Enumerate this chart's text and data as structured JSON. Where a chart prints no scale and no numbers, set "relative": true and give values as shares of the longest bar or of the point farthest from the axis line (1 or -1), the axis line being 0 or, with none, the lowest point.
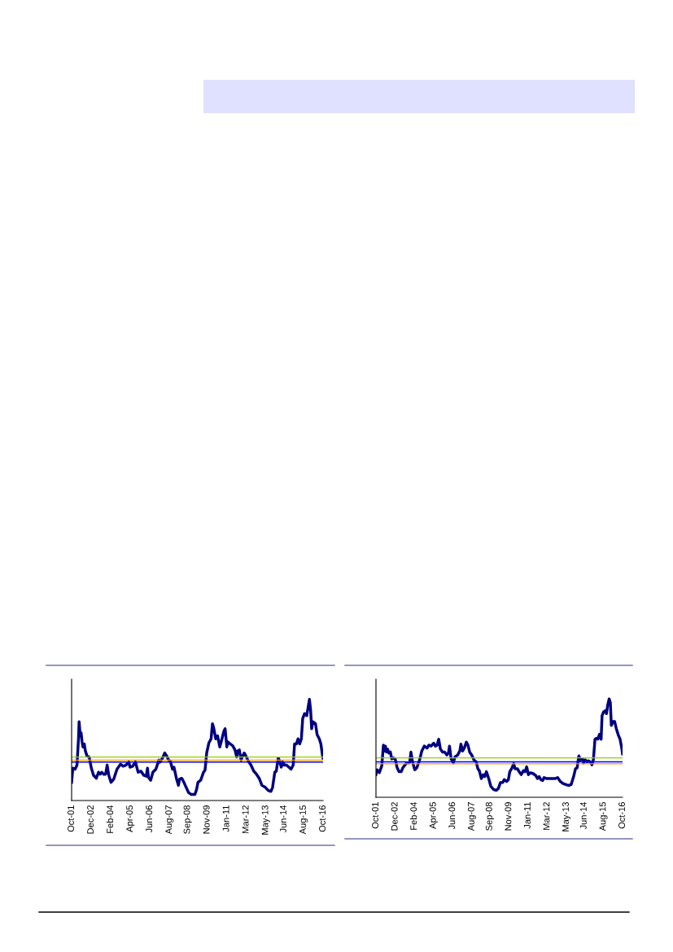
{
  "chart_data": [
    {
      "type": "line",
      "relative": true,
      "xlim": [
        "2001-10",
        "2016-10"
      ],
      "xticks": [
        {
          "value": "2001-10",
          "label": "Oct-01"
        },
        {
          "value": "2002-12",
          "label": "Dec-02"
        },
        {
          "value": "2004-02",
          "label": "Feb-04"
        },
        {
          "value": "2005-04",
          "label": "Apr-05"
        },
        {
          "value": "2006-06",
          "label": "Jun-06"
        },
        {
          "value": "2007-08",
          "label": "Aug-07"
        },
        {
          "value": "2008-09",
          "label": "Sep-08"
        },
        {
          "value": "2009-11",
          "label": "Nov-09"
        },
        {
          "value": "2011-01",
          "label": "Jan-11"
        },
        {
          "value": "2012-03",
          "label": "Mar-12"
        },
        {
          "value": "2013-05",
          "label": "May-13"
        },
        {
          "value": "2014-06",
          "label": "Jun-14"
        },
        {
          "value": "2015-08",
          "label": "Aug-15"
        },
        {
          "value": "2016-10",
          "label": "Oct-16"
        }
      ],
      "x": [
        "2001-10-01",
        "2001-10-28",
        "2001-12-16",
        "2002-01-26",
        "2002-02-28",
        "2002-03-13",
        "2002-04-08",
        "2002-04-26",
        "2002-05-17",
        "2002-06-05",
        "2002-07-04",
        "2002-07-28",
        "2002-09-02",
        "2002-10-19",
        "2002-12-05",
        "2003-01-22",
        "2003-03-23",
        "2003-05-10",
        "2003-06-13",
        "2003-07-19",
        "2003-08-25",
        "2003-10-11",
        "2003-11-14",
        "2003-12-20",
        "2004-02-07",
        "2004-04-04",
        "2004-06-16",
        "2004-09-02",
        "2004-10-28",
        "2004-12-27",
        "2005-02-28",
        "2005-03-27",
        "2005-05-25",
        "2005-07-22",
        "2005-09-20",
        "2005-11-21",
        "2006-01-19",
        "2006-03-16",
        "2006-04-11",
        "2006-05-03",
        "2006-06-20",
        "2006-08-07",
        "2006-10-11",
        "2006-12-16",
        "2007-01-08",
        "2007-03-05",
        "2007-04-22",
        "2007-06-05",
        "2007-07-15",
        "2007-08-21",
        "2007-10-08",
        "2007-11-10",
        "2008-01-01",
        "2008-02-14",
        "2008-03-09",
        "2008-04-26",
        "2008-06-13",
        "2008-07-22",
        "2008-09-20",
        "2008-11-21",
        "2009-02-07",
        "2009-03-16",
        "2009-04-15",
        "2009-06-13",
        "2009-08-14",
        "2009-09-16",
        "2009-10-22",
        "2009-12-09",
        "2010-01-26",
        "2010-02-25",
        "2010-03-23",
        "2010-05-07",
        "2010-06-16",
        "2010-08-03",
        "2010-09-20",
        "2010-10-28",
        "2010-11-28",
        "2011-01-04",
        "2011-01-28",
        "2011-03-16",
        "2011-05-14",
        "2011-07-01",
        "2011-08-07",
        "2011-08-28",
        "2011-10-04",
        "2011-11-10",
        "2011-12-13",
        "2012-01-19",
        "2012-02-25",
        "2012-04-15",
        "2012-06-13",
        "2012-08-14",
        "2012-10-11",
        "2012-12-09",
        "2013-02-07",
        "2013-04-22",
        "2013-06-23",
        "2013-08-21",
        "2013-09-27",
        "2013-11-14",
        "2013-12-16",
        "2014-01-28",
        "2014-02-28",
        "2014-04-04",
        "2014-05-07",
        "2014-06-13",
        "2014-07-28",
        "2014-09-16",
        "2014-11-03",
        "2014-12-20",
        "2015-01-19",
        "2015-02-28",
        "2015-04-04",
        "2015-05-10",
        "2015-06-16",
        "2015-07-15",
        "2015-08-25",
        "2015-10-11",
        "2015-11-10",
        "2015-12-09",
        "2016-01-04",
        "2016-01-26",
        "2016-02-21",
        "2016-04-19",
        "2016-05-25",
        "2016-07-11",
        "2016-08-14",
        "2016-09-20",
        "2016-10-01"
      ],
      "series": [
        {
          "color": "#000080",
          "values": [
            0.18,
            0.32,
            0.31,
            0.35,
            0.61,
            0.78,
            0.64,
            0.67,
            0.58,
            0.53,
            0.56,
            0.49,
            0.44,
            0.43,
            0.32,
            0.25,
            0.22,
            0.28,
            0.26,
            0.28,
            0.26,
            0.26,
            0.35,
            0.25,
            0.18,
            0.21,
            0.31,
            0.36,
            0.34,
            0.35,
            0.38,
            0.33,
            0.34,
            0.38,
            0.28,
            0.29,
            0.25,
            0.24,
            0.32,
            0.23,
            0.2,
            0.28,
            0.31,
            0.4,
            0.38,
            0.42,
            0.47,
            0.44,
            0.4,
            0.39,
            0.31,
            0.33,
            0.22,
            0.15,
            0.21,
            0.22,
            0.18,
            0.14,
            0.08,
            0.06,
            0.06,
            0.11,
            0.18,
            0.2,
            0.28,
            0.3,
            0.47,
            0.57,
            0.61,
            0.76,
            0.72,
            0.61,
            0.64,
            0.53,
            0.61,
            0.68,
            0.71,
            0.53,
            0.58,
            0.56,
            0.54,
            0.5,
            0.43,
            0.49,
            0.5,
            0.4,
            0.44,
            0.47,
            0.44,
            0.39,
            0.35,
            0.29,
            0.26,
            0.22,
            0.15,
            0.13,
            0.1,
            0.09,
            0.13,
            0.28,
            0.29,
            0.42,
            0.39,
            0.33,
            0.38,
            0.35,
            0.35,
            0.33,
            0.31,
            0.35,
            0.56,
            0.56,
            0.61,
            0.56,
            0.61,
            0.81,
            0.86,
            0.84,
            0.92,
            1.0,
            0.89,
            0.71,
            0.78,
            0.76,
            0.65,
            0.61,
            0.56,
            0.44,
            0.42
          ]
        }
      ],
      "ref_lines": [
        {
          "axis": "y",
          "value": 0.43,
          "color": "#99cc00"
        },
        {
          "axis": "y",
          "value": 0.4,
          "color": "#ff9900"
        },
        {
          "axis": "y",
          "value": 0.38,
          "color": "#0000ff"
        }
      ],
      "grid": false,
      "legend": false
    },
    {
      "type": "line",
      "relative": true,
      "xlim": [
        "2001-10",
        "2016-10"
      ],
      "xticks": [
        {
          "value": "2001-10",
          "label": "Oct-01"
        },
        {
          "value": "2002-12",
          "label": "Dec-02"
        },
        {
          "value": "2004-02",
          "label": "Feb-04"
        },
        {
          "value": "2005-04",
          "label": "Apr-05"
        },
        {
          "value": "2006-06",
          "label": "Jun-06"
        },
        {
          "value": "2007-08",
          "label": "Aug-07"
        },
        {
          "value": "2008-09",
          "label": "Sep-08"
        },
        {
          "value": "2009-11",
          "label": "Nov-09"
        },
        {
          "value": "2011-01",
          "label": "Jan-11"
        },
        {
          "value": "2012-03",
          "label": "Mar-12"
        },
        {
          "value": "2013-05",
          "label": "May-13"
        },
        {
          "value": "2014-06",
          "label": "Jun-14"
        },
        {
          "value": "2015-08",
          "label": "Aug-15"
        },
        {
          "value": "2016-10",
          "label": "Oct-16"
        }
      ],
      "x": [
        "2001-10-01",
        "2001-10-28",
        "2001-12-16",
        "2002-02-07",
        "2002-03-16",
        "2002-04-04",
        "2002-04-28",
        "2002-05-21",
        "2002-06-16",
        "2002-07-15",
        "2002-08-17",
        "2002-09-16",
        "2002-10-26",
        "2002-12-02",
        "2003-01-15",
        "2003-02-25",
        "2003-04-15",
        "2003-05-21",
        "2003-06-23",
        "2003-08-14",
        "2003-10-01",
        "2003-10-22",
        "2003-11-17",
        "2003-12-23",
        "2004-02-10",
        "2004-03-27",
        "2004-05-28",
        "2004-07-15",
        "2004-09-09",
        "2004-11-10",
        "2004-12-20",
        "2005-02-07",
        "2005-04-08",
        "2005-05-14",
        "2005-06-20",
        "2005-07-26",
        "2005-09-02",
        "2005-10-19",
        "2005-12-05",
        "2006-01-22",
        "2006-02-28",
        "2006-03-23",
        "2006-04-28",
        "2006-06-16",
        "2006-07-22",
        "2006-09-20",
        "2006-11-07",
        "2006-12-02",
        "2007-01-08",
        "2007-02-14",
        "2007-04-01",
        "2007-05-07",
        "2007-06-13",
        "2007-07-28",
        "2007-09-16",
        "2007-11-07",
        "2007-12-13",
        "2008-01-15",
        "2008-02-28",
        "2008-04-11",
        "2008-05-14",
        "2008-06-20",
        "2008-08-10",
        "2008-09-27",
        "2008-11-25",
        "2009-01-26",
        "2009-03-13",
        "2009-04-28",
        "2009-06-16",
        "2009-07-22",
        "2009-09-13",
        "2009-10-22",
        "2009-11-21",
        "2010-01-11",
        "2010-02-17",
        "2010-03-20",
        "2010-05-10",
        "2010-06-16",
        "2010-08-03",
        "2010-09-20",
        "2010-10-26",
        "2010-12-02",
        "2011-01-08",
        "2011-02-25",
        "2011-04-26",
        "2011-06-23",
        "2011-07-28",
        "2011-09-05",
        "2011-10-11",
        "2011-11-21",
        "2011-12-23",
        "2012-02-21",
        "2012-04-22",
        "2012-06-20",
        "2012-08-21",
        "2012-10-19",
        "2012-12-20",
        "2013-02-17",
        "2013-04-19",
        "2013-06-16",
        "2013-08-17",
        "2013-10-15",
        "2013-11-21",
        "2013-12-27",
        "2014-02-03",
        "2014-03-09",
        "2014-04-26",
        "2014-05-21",
        "2014-06-27",
        "2014-08-03",
        "2014-09-05",
        "2014-10-15",
        "2014-11-21",
        "2014-12-23",
        "2015-01-28",
        "2015-03-05",
        "2015-04-01",
        "2015-05-07",
        "2015-06-13",
        "2015-07-04",
        "2015-08-10",
        "2015-09-16",
        "2015-10-11",
        "2015-11-03",
        "2015-12-09",
        "2016-01-04",
        "2016-01-26",
        "2016-03-02",
        "2016-04-08",
        "2016-05-14",
        "2016-07-01",
        "2016-08-07",
        "2016-09-13",
        "2016-10-01"
      ],
      "series": [
        {
          "color": "#000080",
          "values": [
            0.23,
            0.28,
            0.25,
            0.32,
            0.53,
            0.47,
            0.52,
            0.46,
            0.49,
            0.45,
            0.46,
            0.39,
            0.4,
            0.39,
            0.3,
            0.26,
            0.26,
            0.3,
            0.32,
            0.35,
            0.35,
            0.36,
            0.46,
            0.36,
            0.28,
            0.3,
            0.38,
            0.47,
            0.52,
            0.5,
            0.53,
            0.52,
            0.55,
            0.52,
            0.53,
            0.59,
            0.49,
            0.46,
            0.46,
            0.43,
            0.45,
            0.52,
            0.39,
            0.35,
            0.41,
            0.43,
            0.47,
            0.54,
            0.47,
            0.5,
            0.56,
            0.53,
            0.46,
            0.43,
            0.38,
            0.36,
            0.29,
            0.27,
            0.19,
            0.23,
            0.21,
            0.26,
            0.19,
            0.11,
            0.08,
            0.07,
            0.09,
            0.15,
            0.15,
            0.18,
            0.16,
            0.18,
            0.26,
            0.3,
            0.34,
            0.29,
            0.29,
            0.26,
            0.23,
            0.27,
            0.26,
            0.31,
            0.23,
            0.25,
            0.24,
            0.22,
            0.19,
            0.21,
            0.18,
            0.17,
            0.2,
            0.19,
            0.19,
            0.19,
            0.19,
            0.2,
            0.16,
            0.14,
            0.13,
            0.12,
            0.13,
            0.22,
            0.29,
            0.3,
            0.42,
            0.38,
            0.39,
            0.35,
            0.38,
            0.36,
            0.37,
            0.36,
            0.33,
            0.38,
            0.59,
            0.6,
            0.59,
            0.64,
            0.59,
            0.83,
            0.87,
            0.88,
            0.85,
            0.93,
            1.0,
            0.96,
            0.73,
            0.77,
            0.77,
            0.7,
            0.63,
            0.59,
            0.5,
            0.44
          ]
        }
      ],
      "ref_lines": [
        {
          "axis": "y",
          "value": 0.4,
          "color": "#99cc00"
        },
        {
          "axis": "y",
          "value": 0.36,
          "color": "#0000ff"
        },
        {
          "axis": "y",
          "value": 0.34,
          "color": "#ff9900"
        }
      ],
      "grid": false,
      "legend": false
    }
  ]
}
